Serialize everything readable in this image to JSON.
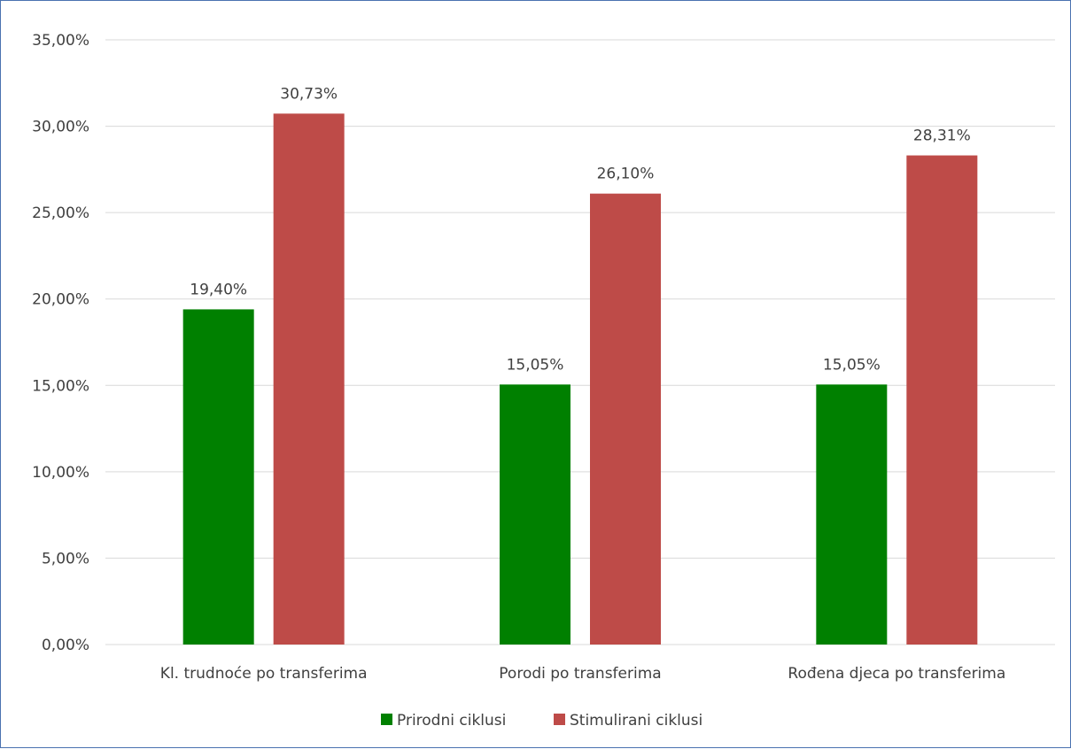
{
  "chart_data": {
    "type": "bar",
    "categories": [
      "Kl. trudnoće po transferima",
      "Porodi po transferima",
      "Rođena djeca po transferima"
    ],
    "series": [
      {
        "name": "Prirodni ciklusi",
        "color": "#008000",
        "values": [
          19.4,
          15.05,
          15.05
        ],
        "labels": [
          "19,40%",
          "15,05%",
          "15,05%"
        ]
      },
      {
        "name": "Stimulirani ciklusi",
        "color": "#be4b48",
        "values": [
          30.73,
          26.1,
          28.31
        ],
        "labels": [
          "30,73%",
          "26,10%",
          "28,31%"
        ]
      }
    ],
    "ylim": [
      0,
      35
    ],
    "yticks": [
      0,
      5,
      10,
      15,
      20,
      25,
      30,
      35
    ],
    "ytick_labels": [
      "0,00%",
      "5,00%",
      "10,00%",
      "15,00%",
      "20,00%",
      "25,00%",
      "30,00%",
      "35,00%"
    ],
    "grid": true,
    "legend_position": "bottom",
    "title": "",
    "xlabel": "",
    "ylabel": ""
  }
}
